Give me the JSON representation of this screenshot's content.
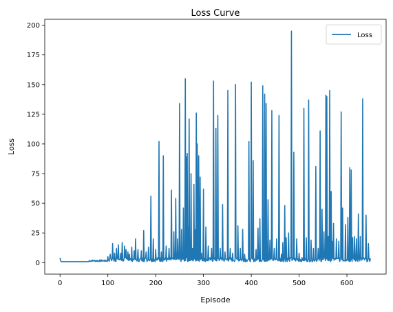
{
  "chart_data": {
    "type": "line",
    "title": "Loss Curve",
    "xlabel": "Episode",
    "ylabel": "Loss",
    "xlim": [
      -32,
      682
    ],
    "ylim": [
      -9.7,
      205
    ],
    "x_ticks": [
      0,
      100,
      200,
      300,
      400,
      500,
      600
    ],
    "y_ticks": [
      0,
      25,
      50,
      75,
      100,
      125,
      150,
      175,
      200
    ],
    "grid": false,
    "legend_position": "top-right",
    "series": [
      {
        "name": "Loss",
        "color": "#1f77b4",
        "episode_count": 650,
        "start_values": [
          4.0,
          2.0,
          1.0
        ],
        "baseline_level": 0.8,
        "peaks": [
          [
            100,
            5
          ],
          [
            105,
            7
          ],
          [
            110,
            16
          ],
          [
            114,
            8
          ],
          [
            118,
            12
          ],
          [
            122,
            15
          ],
          [
            127,
            8
          ],
          [
            130,
            17
          ],
          [
            135,
            14
          ],
          [
            138,
            11
          ],
          [
            142,
            9
          ],
          [
            145,
            7
          ],
          [
            150,
            13
          ],
          [
            155,
            10
          ],
          [
            158,
            20
          ],
          [
            163,
            11
          ],
          [
            170,
            10
          ],
          [
            175,
            27
          ],
          [
            180,
            9
          ],
          [
            185,
            13
          ],
          [
            190,
            56
          ],
          [
            195,
            20
          ],
          [
            200,
            11
          ],
          [
            207,
            102
          ],
          [
            212,
            9
          ],
          [
            216,
            90
          ],
          [
            222,
            14
          ],
          [
            228,
            12
          ],
          [
            233,
            61
          ],
          [
            238,
            26
          ],
          [
            242,
            54
          ],
          [
            246,
            20
          ],
          [
            250,
            134
          ],
          [
            254,
            28
          ],
          [
            258,
            46
          ],
          [
            262,
            155
          ],
          [
            264,
            89
          ],
          [
            266,
            92
          ],
          [
            268,
            30
          ],
          [
            270,
            121
          ],
          [
            274,
            75
          ],
          [
            277,
            12
          ],
          [
            280,
            66
          ],
          [
            283,
            28
          ],
          [
            285,
            126
          ],
          [
            287,
            100
          ],
          [
            290,
            90
          ],
          [
            293,
            72
          ],
          [
            296,
            8
          ],
          [
            300,
            62
          ],
          [
            305,
            30
          ],
          [
            310,
            14
          ],
          [
            317,
            12
          ],
          [
            321,
            153
          ],
          [
            326,
            113
          ],
          [
            330,
            124
          ],
          [
            335,
            12
          ],
          [
            340,
            49
          ],
          [
            345,
            9
          ],
          [
            351,
            145
          ],
          [
            356,
            12
          ],
          [
            361,
            8
          ],
          [
            367,
            150
          ],
          [
            372,
            31
          ],
          [
            377,
            12
          ],
          [
            382,
            28
          ],
          [
            386,
            7
          ],
          [
            395,
            102
          ],
          [
            400,
            152
          ],
          [
            404,
            86
          ],
          [
            410,
            11
          ],
          [
            414,
            29
          ],
          [
            418,
            37
          ],
          [
            424,
            149
          ],
          [
            428,
            142
          ],
          [
            431,
            134
          ],
          [
            435,
            53
          ],
          [
            439,
            19
          ],
          [
            443,
            128
          ],
          [
            448,
            12
          ],
          [
            453,
            20
          ],
          [
            458,
            124
          ],
          [
            463,
            7
          ],
          [
            466,
            17
          ],
          [
            470,
            48
          ],
          [
            473,
            21
          ],
          [
            478,
            25
          ],
          [
            484,
            195
          ],
          [
            489,
            93
          ],
          [
            495,
            20
          ],
          [
            500,
            8
          ],
          [
            510,
            130
          ],
          [
            515,
            21
          ],
          [
            520,
            137
          ],
          [
            525,
            19
          ],
          [
            530,
            12
          ],
          [
            535,
            81
          ],
          [
            540,
            12
          ],
          [
            544,
            111
          ],
          [
            548,
            45
          ],
          [
            552,
            26
          ],
          [
            556,
            141
          ],
          [
            558,
            140
          ],
          [
            561,
            22
          ],
          [
            564,
            145
          ],
          [
            567,
            60
          ],
          [
            569,
            18
          ],
          [
            572,
            33
          ],
          [
            578,
            20
          ],
          [
            583,
            18
          ],
          [
            588,
            127
          ],
          [
            591,
            46
          ],
          [
            597,
            32
          ],
          [
            602,
            38
          ],
          [
            606,
            80
          ],
          [
            609,
            78
          ],
          [
            612,
            21
          ],
          [
            616,
            22
          ],
          [
            620,
            20
          ],
          [
            624,
            41
          ],
          [
            628,
            22
          ],
          [
            633,
            138
          ],
          [
            640,
            40
          ],
          [
            645,
            16
          ]
        ]
      }
    ]
  }
}
